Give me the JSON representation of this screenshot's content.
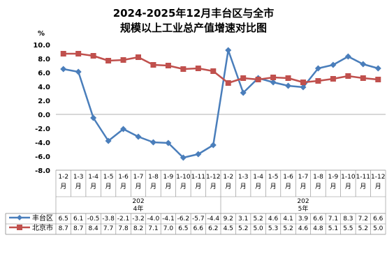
{
  "chart_data": {
    "type": "line",
    "title": "2024-2025年12月丰台区与全市",
    "subtitle": "规模以上工业总产值增速对比图",
    "ylabel": "%",
    "ylim": [
      -8,
      10
    ],
    "yticks": [
      "10.0",
      "8.0",
      "6.0",
      "4.0",
      "2.0",
      "0.0",
      "-2.0",
      "-4.0",
      "-6.0",
      "-8.0"
    ],
    "year_labels": [
      {
        "top": "202",
        "bottom": "4年"
      },
      {
        "top": "202",
        "bottom": "5年"
      }
    ],
    "categories": [
      [
        "1-2",
        "月"
      ],
      [
        "1-3",
        "月"
      ],
      [
        "1-4",
        "月"
      ],
      [
        "1-5",
        "月"
      ],
      [
        "1-6",
        "月"
      ],
      [
        "1-7",
        "月"
      ],
      [
        "1-8",
        "月"
      ],
      [
        "1-9",
        "月"
      ],
      [
        "1-10",
        "月"
      ],
      [
        "1-11",
        "月"
      ],
      [
        "1-12",
        "月"
      ],
      [
        "1-2",
        "月"
      ],
      [
        "1-3",
        "月"
      ],
      [
        "1-4",
        "月"
      ],
      [
        "1-5",
        "月"
      ],
      [
        "1-6",
        "月"
      ],
      [
        "1-7",
        "月"
      ],
      [
        "1-8",
        "月"
      ],
      [
        "1-9",
        "月"
      ],
      [
        "1-10",
        "月"
      ],
      [
        "1-11",
        "月"
      ],
      [
        "1-12",
        "月"
      ]
    ],
    "series": [
      {
        "name": "丰台区",
        "color": "#4a7ebb",
        "marker": "diamond",
        "values": [
          6.5,
          6.1,
          -0.5,
          -3.8,
          -2.1,
          -3.2,
          -4.0,
          -4.1,
          -6.2,
          -5.7,
          -4.4,
          9.2,
          3.1,
          5.2,
          4.6,
          4.1,
          3.9,
          6.6,
          7.1,
          8.3,
          7.2,
          6.6
        ],
        "labels": [
          "6.5",
          "6.1",
          "-0.5",
          "-3.8",
          "-2.1",
          "-3.2",
          "-4.0",
          "-4.1",
          "-6.2",
          "-5.7",
          "-4.4",
          "9.2",
          "3.1",
          "5.2",
          "4.6",
          "4.1",
          "3.9",
          "6.6",
          "7.1",
          "8.3",
          "7.2",
          "6.6"
        ]
      },
      {
        "name": "北京市",
        "color": "#c0504d",
        "marker": "square",
        "values": [
          8.7,
          8.7,
          8.4,
          7.7,
          7.8,
          8.2,
          7.1,
          7.0,
          6.5,
          6.6,
          6.2,
          4.5,
          5.2,
          5.0,
          5.3,
          5.2,
          4.6,
          4.8,
          5.1,
          5.5,
          5.2,
          5.0
        ],
        "labels": [
          "8.7",
          "8.7",
          "8.4",
          "7.7",
          "7.8",
          "8.2",
          "7.1",
          "7.0",
          "6.5",
          "6.6",
          "6.2",
          "4.5",
          "5.2",
          "5.0",
          "5.3",
          "5.2",
          "4.6",
          "4.8",
          "5.1",
          "5.5",
          "5.2",
          "5.0"
        ]
      }
    ]
  }
}
